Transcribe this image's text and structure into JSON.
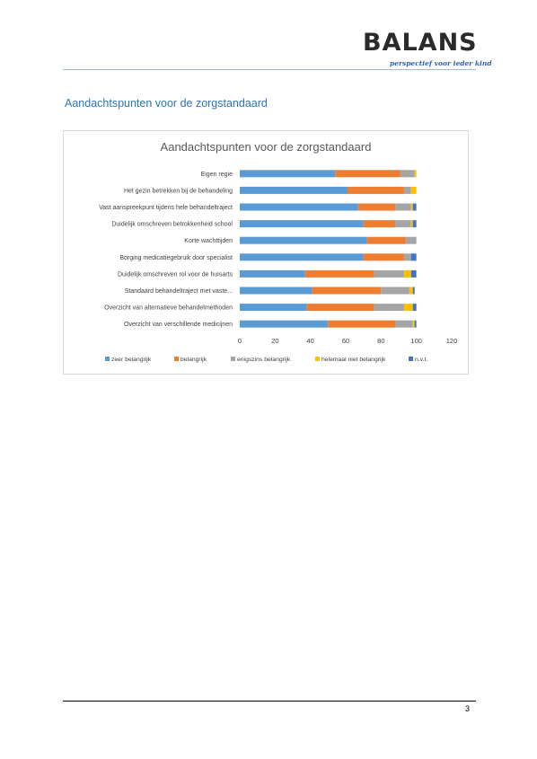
{
  "header": {
    "logo_text": "BALANS",
    "logo_tagline": "perspectief voor ieder kind"
  },
  "section_title": "Aandachtspunten voor de zorgstandaard",
  "chart_data": {
    "type": "bar",
    "orientation": "horizontal",
    "stacked": true,
    "title": "Aandachtspunten voor de zorgstandaard",
    "categories": [
      "Eigen regie",
      "Het gezin betrekken bij de behandeling",
      "Vast aanspreekpunt tijdens hele behandeltraject",
      "Duidelijk omschreven betrokkenheid school",
      "Korte wachttijden",
      "Borging medicatiegebruik door specialist",
      "Duidelijk omschreven rol voor de huisarts",
      "Standaard behandeltraject met vaste...",
      "Overzicht van alternatieve behandelmethoden",
      "Overzicht van verschillende medicijnen"
    ],
    "series": [
      {
        "name": "zeer belangrijk",
        "color": "#5b9bd5",
        "values": [
          54,
          61,
          67,
          70,
          72,
          70,
          37,
          41,
          38,
          50
        ]
      },
      {
        "name": "belangrijk",
        "color": "#ed7d31",
        "values": [
          37,
          32,
          21,
          18,
          22,
          23,
          39,
          39,
          38,
          38
        ]
      },
      {
        "name": "enigszins belangrijk",
        "color": "#a5a5a5",
        "values": [
          8,
          4,
          9,
          9,
          6,
          4,
          17,
          16,
          17,
          10
        ]
      },
      {
        "name": "helemaal niet belangrijk",
        "color": "#ffc000",
        "values": [
          1,
          3,
          1,
          1,
          0,
          0,
          4,
          2,
          5,
          1
        ]
      },
      {
        "name": "n.v.t.",
        "color": "#4472c4",
        "values": [
          0,
          0,
          2,
          2,
          0,
          3,
          3,
          1,
          2,
          1
        ]
      }
    ],
    "xlim": [
      0,
      120
    ],
    "xticks": [
      "0",
      "20",
      "40",
      "60",
      "80",
      "100",
      "120"
    ],
    "grid": false,
    "legend_position": "bottom"
  },
  "footer": {
    "page_number": "3"
  }
}
